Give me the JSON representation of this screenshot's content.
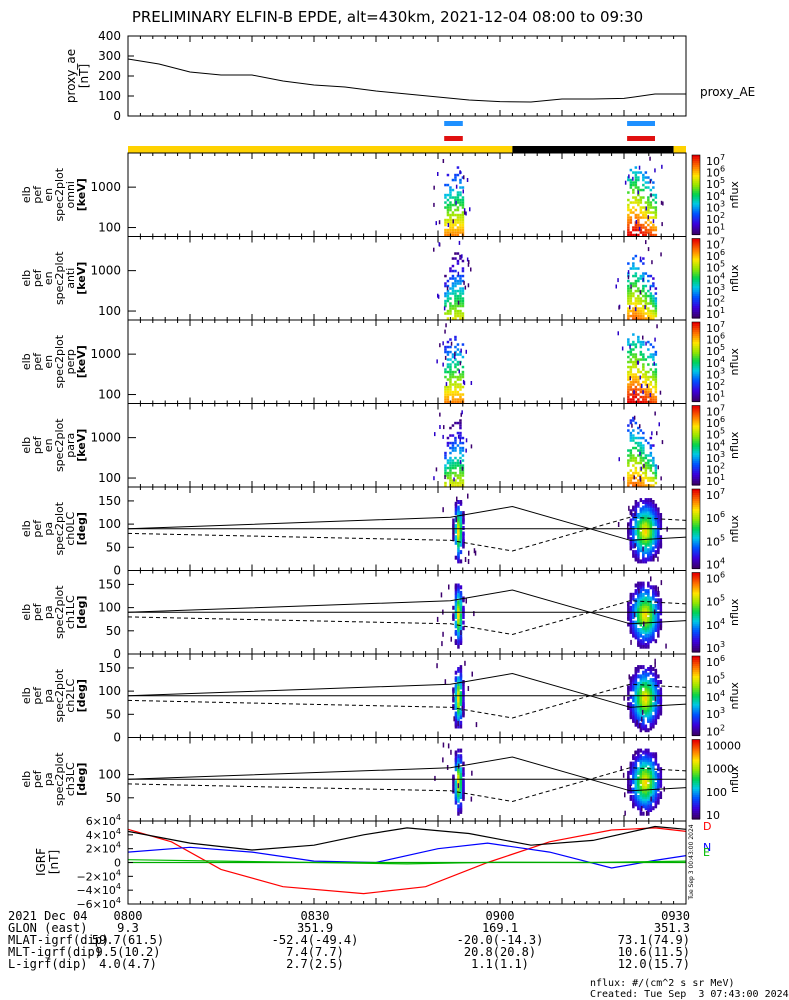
{
  "title": "PRELIMINARY ELFIN-B EPDE, alt=430km, 2021-12-04 08:00 to 09:30",
  "proxy_ae": {
    "ylabel": "proxy_ae\n[nT]",
    "label": "proxy_AE",
    "yticks": [
      "400",
      "300",
      "200",
      "100",
      "0"
    ]
  },
  "panels": [
    {
      "id": "omni",
      "ylabel_lines": [
        "elb",
        "pef",
        "en",
        "spec2plot",
        "omni",
        "[keV]"
      ],
      "yticks": [
        "1000",
        "100"
      ],
      "cbar_ticks": [
        "10^7",
        "10^6",
        "10^5",
        "10^4",
        "10^3",
        "10^2",
        "10^1"
      ],
      "cbar_label": "nflux"
    },
    {
      "id": "anti",
      "ylabel_lines": [
        "elb",
        "pef",
        "en",
        "spec2plot",
        "anti",
        "[keV]"
      ],
      "yticks": [
        "1000",
        "100"
      ],
      "cbar_ticks": [
        "10^7",
        "10^6",
        "10^5",
        "10^4",
        "10^3",
        "10^2",
        "10^1"
      ],
      "cbar_label": "nflux"
    },
    {
      "id": "perp",
      "ylabel_lines": [
        "elb",
        "pef",
        "en",
        "spec2plot",
        "perp",
        "[keV]"
      ],
      "yticks": [
        "1000",
        "100"
      ],
      "cbar_ticks": [
        "10^7",
        "10^6",
        "10^5",
        "10^4",
        "10^3",
        "10^2",
        "10^1"
      ],
      "cbar_label": "nflux"
    },
    {
      "id": "para",
      "ylabel_lines": [
        "elb",
        "pef",
        "en",
        "spec2plot",
        "para",
        "[keV]"
      ],
      "yticks": [
        "1000",
        "100"
      ],
      "cbar_ticks": [
        "10^7",
        "10^6",
        "10^5",
        "10^4",
        "10^3",
        "10^2",
        "10^1"
      ],
      "cbar_label": "nflux"
    },
    {
      "id": "ch0LC",
      "ylabel_lines": [
        "elb",
        "pef",
        "pa",
        "spec2plot",
        "ch0LC",
        "[deg]"
      ],
      "yticks": [
        "150",
        "100",
        "50",
        "0"
      ],
      "cbar_ticks": [
        "10^7",
        "10^6",
        "10^5",
        "10^4"
      ],
      "cbar_label": "nflux"
    },
    {
      "id": "ch1LC",
      "ylabel_lines": [
        "elb",
        "pef",
        "pa",
        "spec2plot",
        "ch1LC",
        "[deg]"
      ],
      "yticks": [
        "150",
        "100",
        "50",
        "0"
      ],
      "cbar_ticks": [
        "10^6",
        "10^5",
        "10^4",
        "10^3"
      ],
      "cbar_label": "nflux"
    },
    {
      "id": "ch2LC",
      "ylabel_lines": [
        "elb",
        "pef",
        "pa",
        "spec2plot",
        "ch2LC",
        "[deg]"
      ],
      "yticks": [
        "150",
        "100",
        "50",
        "0"
      ],
      "cbar_ticks": [
        "10^6",
        "10^5",
        "10^4",
        "10^3",
        "10^2"
      ],
      "cbar_label": "nflux"
    },
    {
      "id": "ch3LC",
      "ylabel_lines": [
        "elb",
        "pef",
        "pa",
        "spec2plot",
        "ch3LC",
        "[deg]"
      ],
      "yticks": [
        "100",
        "50"
      ],
      "cbar_ticks": [
        "10000",
        "1000",
        "100",
        "10"
      ],
      "cbar_label": "nflux"
    }
  ],
  "igrf": {
    "ylabel": "IGRF\n[nT]",
    "yticks": [
      "6×10^4",
      "4×10^4",
      "2×10^4",
      "0",
      "−2×10^4",
      "−4×10^4",
      "−6×10^4"
    ],
    "legend": [
      "D",
      "N",
      "E"
    ],
    "side_stamp": "Tue Sep  3 00:43:00 2024"
  },
  "footer": {
    "rows": [
      [
        "2021 Dec 04",
        "0800",
        "0830",
        "0900",
        "0930"
      ],
      [
        "GLON (east)",
        "9.3",
        "351.9",
        "169.1",
        "351.3"
      ],
      [
        "MLAT-igrf(dip)",
        "59.7(61.5)",
        "-52.4(-49.4)",
        "-20.0(-14.3)",
        "73.1(74.9)"
      ],
      [
        "MLT-igrf(dip)",
        "9.5(10.2)",
        "7.4(7.7)",
        "20.8(20.8)",
        "10.6(11.5)"
      ],
      [
        "L-igrf(dip)",
        "4.0(4.7)",
        "2.7(2.5)",
        "1.1(1.1)",
        "12.0(15.7)"
      ]
    ],
    "units_note": "nflux: #/(cm^2 s sr MeV)",
    "created": "Created: Tue Sep  3 07:43:00 2024"
  },
  "chart_data": {
    "type": "heatmap",
    "x_time": {
      "start": "08:00",
      "end": "09:30",
      "tick_labels": [
        "0800",
        "0830",
        "0900",
        "0930"
      ]
    },
    "proxy_ae": {
      "type": "line",
      "ylim": [
        0,
        400
      ],
      "x_minutes": [
        0,
        5,
        10,
        15,
        20,
        25,
        30,
        35,
        40,
        45,
        50,
        55,
        60,
        65,
        70,
        75,
        80,
        85,
        90
      ],
      "values": [
        285,
        260,
        220,
        205,
        205,
        175,
        155,
        145,
        125,
        110,
        95,
        80,
        72,
        70,
        85,
        85,
        88,
        110,
        110
      ]
    },
    "science_zones": [
      {
        "start_min": 51.0,
        "end_min": 54.0,
        "colors": [
          "blue",
          "red"
        ]
      },
      {
        "start_min": 80.5,
        "end_min": 85.0,
        "colors": [
          "blue",
          "red"
        ]
      }
    ],
    "orbit_bar": [
      {
        "start_min": 0,
        "end_min": 62,
        "color": "#ffd200"
      },
      {
        "start_min": 62,
        "end_min": 88,
        "color": "#000000"
      },
      {
        "start_min": 88,
        "end_min": 90,
        "color": "#ffd200"
      }
    ],
    "energy_panels": {
      "ylim_keV": [
        60,
        7000
      ],
      "log": true,
      "bursts": [
        {
          "start_min": 51.0,
          "end_min": 54.0,
          "peak_min": 53.0
        },
        {
          "start_min": 80.5,
          "end_min": 85.0,
          "peak_min": 81.5
        }
      ]
    },
    "pitch_angle_panels": {
      "ylim": [
        0,
        180
      ],
      "horizontal_line": 90,
      "solid_lc": {
        "x_minutes": [
          0,
          52,
          62,
          81,
          90
        ],
        "values": [
          90,
          115,
          138,
          65,
          72
        ]
      },
      "dashed_alc": {
        "x_minutes": [
          0,
          52,
          62,
          81,
          90
        ],
        "values": [
          80,
          65,
          42,
          115,
          108
        ]
      }
    },
    "igrf": {
      "type": "line",
      "ylim": [
        -60000,
        60000
      ],
      "series": [
        {
          "name": "D",
          "color": "#ff0000",
          "x_minutes": [
            0,
            7,
            15,
            25,
            38,
            48,
            58,
            68,
            78,
            85,
            90
          ],
          "values": [
            48000,
            30000,
            -10000,
            -35000,
            -45000,
            -35000,
            0,
            30000,
            47000,
            50000,
            45000
          ]
        },
        {
          "name": "N",
          "color": "#0000ff",
          "x_minutes": [
            0,
            10,
            20,
            30,
            40,
            50,
            58,
            68,
            78,
            85,
            90
          ],
          "values": [
            15000,
            22000,
            15000,
            2000,
            0,
            20000,
            28000,
            15000,
            -8000,
            3000,
            10000
          ]
        },
        {
          "name": "E",
          "color": "#00bb00",
          "x_minutes": [
            0,
            15,
            30,
            45,
            60,
            75,
            90
          ],
          "values": [
            4000,
            2000,
            0,
            -2000,
            500,
            0,
            2000
          ]
        },
        {
          "name": "",
          "color": "#000000",
          "x_minutes": [
            0,
            10,
            20,
            30,
            38,
            45,
            55,
            65,
            75,
            85,
            90
          ],
          "values": [
            45000,
            28000,
            18000,
            25000,
            40000,
            50000,
            42000,
            25000,
            32000,
            52000,
            48000
          ]
        }
      ],
      "zero_line_color": "#00aa00"
    },
    "colorbar": {
      "colormap": "rainbow",
      "label": "nflux"
    }
  }
}
